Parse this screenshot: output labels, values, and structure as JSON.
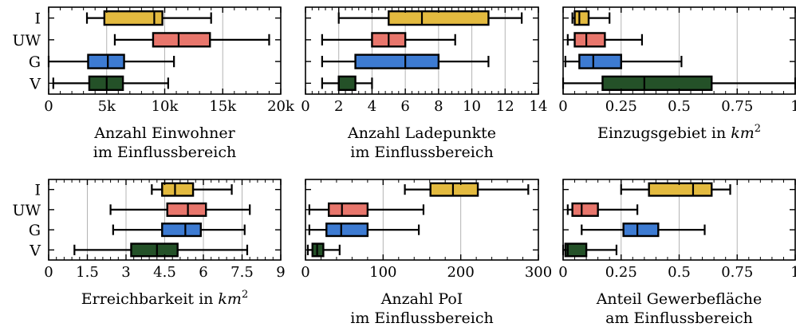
{
  "chart_data": [
    {
      "type": "box",
      "xlabel": [
        "Anzahl Einwohner",
        "im Einflussbereich"
      ],
      "xlim": [
        0,
        20000
      ],
      "xticks": [
        0,
        5000,
        10000,
        15000,
        20000
      ],
      "xtick_labels": [
        "0",
        "5k",
        "10k",
        "15k",
        "20k"
      ],
      "categories": [
        "I",
        "UW",
        "G",
        "V"
      ],
      "boxes": [
        {
          "category": "I",
          "whisker_low": 3300,
          "q1": 4800,
          "median": 9100,
          "q3": 9800,
          "whisker_high": 14000,
          "color": "#e3ba3f"
        },
        {
          "category": "UW",
          "whisker_low": 5700,
          "q1": 9000,
          "median": 11200,
          "q3": 13900,
          "whisker_high": 19000,
          "color": "#e8766c"
        },
        {
          "category": "G",
          "whisker_low": 0,
          "q1": 3400,
          "median": 5100,
          "q3": 6500,
          "whisker_high": 10800,
          "color": "#3d7bd2"
        },
        {
          "category": "V",
          "whisker_low": 400,
          "q1": 3500,
          "median": 5000,
          "q3": 6400,
          "whisker_high": 10300,
          "color": "#245128"
        }
      ]
    },
    {
      "type": "box",
      "xlabel": [
        "Anzahl Ladepunkte",
        "im Einflussbereich"
      ],
      "xlim": [
        0,
        14
      ],
      "xticks": [
        0,
        2,
        4,
        6,
        8,
        10,
        12,
        14
      ],
      "xtick_labels": [
        "0",
        "2",
        "4",
        "6",
        "8",
        "10",
        "12",
        "14"
      ],
      "categories": [
        "I",
        "UW",
        "G",
        "V"
      ],
      "boxes": [
        {
          "category": "I",
          "whisker_low": 2,
          "q1": 5,
          "median": 7,
          "q3": 11,
          "whisker_high": 13,
          "color": "#e3ba3f"
        },
        {
          "category": "UW",
          "whisker_low": 1,
          "q1": 4,
          "median": 5,
          "q3": 6,
          "whisker_high": 9,
          "color": "#e8766c"
        },
        {
          "category": "G",
          "whisker_low": 1,
          "q1": 3,
          "median": 6,
          "q3": 8,
          "whisker_high": 11,
          "color": "#3d7bd2"
        },
        {
          "category": "V",
          "whisker_low": 1,
          "q1": 2,
          "median": 2,
          "q3": 3,
          "whisker_high": 4,
          "color": "#245128"
        }
      ]
    },
    {
      "type": "box",
      "xlabel": [
        "Einzugsgebiet in km²"
      ],
      "xlim": [
        0,
        1
      ],
      "xticks": [
        0,
        0.25,
        0.5,
        0.75,
        1
      ],
      "xtick_labels": [
        "0",
        "0.25",
        "0.5",
        "0.75",
        "1"
      ],
      "categories": [
        "I",
        "UW",
        "G",
        "V"
      ],
      "boxes": [
        {
          "category": "I",
          "whisker_low": 0.04,
          "q1": 0.05,
          "median": 0.07,
          "q3": 0.11,
          "whisker_high": 0.2,
          "color": "#e3ba3f"
        },
        {
          "category": "UW",
          "whisker_low": 0.02,
          "q1": 0.05,
          "median": 0.1,
          "q3": 0.18,
          "whisker_high": 0.34,
          "color": "#e8766c"
        },
        {
          "category": "G",
          "whisker_low": 0.01,
          "q1": 0.07,
          "median": 0.13,
          "q3": 0.25,
          "whisker_high": 0.51,
          "color": "#3d7bd2"
        },
        {
          "category": "V",
          "whisker_low": 0,
          "q1": 0.17,
          "median": 0.35,
          "q3": 0.64,
          "whisker_high": 1.0,
          "color": "#245128"
        }
      ]
    },
    {
      "type": "box",
      "xlabel": [
        "Erreichbarkeit in km²"
      ],
      "xlim": [
        0,
        9
      ],
      "xticks": [
        0,
        1.5,
        3,
        4.5,
        6,
        7.5,
        9
      ],
      "xtick_labels": [
        "0",
        "1.5",
        "3",
        "4.5",
        "6",
        "7.5",
        "9"
      ],
      "categories": [
        "I",
        "UW",
        "G",
        "V"
      ],
      "boxes": [
        {
          "category": "I",
          "whisker_low": 4.0,
          "q1": 4.4,
          "median": 4.9,
          "q3": 5.6,
          "whisker_high": 7.1,
          "color": "#e3ba3f"
        },
        {
          "category": "UW",
          "whisker_low": 2.4,
          "q1": 4.6,
          "median": 5.4,
          "q3": 6.1,
          "whisker_high": 7.8,
          "color": "#e8766c"
        },
        {
          "category": "G",
          "whisker_low": 2.5,
          "q1": 4.4,
          "median": 5.3,
          "q3": 5.9,
          "whisker_high": 7.6,
          "color": "#3d7bd2"
        },
        {
          "category": "V",
          "whisker_low": 1.0,
          "q1": 3.2,
          "median": 4.2,
          "q3": 5.0,
          "whisker_high": 7.7,
          "color": "#245128"
        }
      ]
    },
    {
      "type": "box",
      "xlabel": [
        "Anzahl PoI",
        "im Einflussbereich"
      ],
      "xlim": [
        0,
        300
      ],
      "xticks": [
        0,
        100,
        200,
        300
      ],
      "xtick_labels": [
        "0",
        "100",
        "200",
        "300"
      ],
      "categories": [
        "I",
        "UW",
        "G",
        "V"
      ],
      "boxes": [
        {
          "category": "I",
          "whisker_low": 128,
          "q1": 161,
          "median": 190,
          "q3": 222,
          "whisker_high": 287,
          "color": "#e3ba3f"
        },
        {
          "category": "UW",
          "whisker_low": 5,
          "q1": 30,
          "median": 47,
          "q3": 80,
          "whisker_high": 152,
          "color": "#e8766c"
        },
        {
          "category": "G",
          "whisker_low": 5,
          "q1": 27,
          "median": 46,
          "q3": 80,
          "whisker_high": 146,
          "color": "#3d7bd2"
        },
        {
          "category": "V",
          "whisker_low": 3,
          "q1": 9,
          "median": 15,
          "q3": 23,
          "whisker_high": 44,
          "color": "#245128"
        }
      ]
    },
    {
      "type": "box",
      "xlabel": [
        "Anteil Gewerbefläche",
        "am Einflussbereich"
      ],
      "xlim": [
        0,
        1
      ],
      "xticks": [
        0,
        0.25,
        0.5,
        0.75,
        1
      ],
      "xtick_labels": [
        "0",
        "0.25",
        "0.5",
        "0.75",
        "1"
      ],
      "categories": [
        "I",
        "UW",
        "G",
        "V"
      ],
      "boxes": [
        {
          "category": "I",
          "whisker_low": 0.25,
          "q1": 0.37,
          "median": 0.56,
          "q3": 0.64,
          "whisker_high": 0.72,
          "color": "#e3ba3f"
        },
        {
          "category": "UW",
          "whisker_low": 0.02,
          "q1": 0.04,
          "median": 0.08,
          "q3": 0.15,
          "whisker_high": 0.32,
          "color": "#e8766c"
        },
        {
          "category": "G",
          "whisker_low": 0.08,
          "q1": 0.26,
          "median": 0.32,
          "q3": 0.41,
          "whisker_high": 0.61,
          "color": "#3d7bd2"
        },
        {
          "category": "V",
          "whisker_low": 0,
          "q1": 0.01,
          "median": 0.02,
          "q3": 0.1,
          "whisker_high": 0.23,
          "color": "#245128"
        }
      ]
    }
  ]
}
